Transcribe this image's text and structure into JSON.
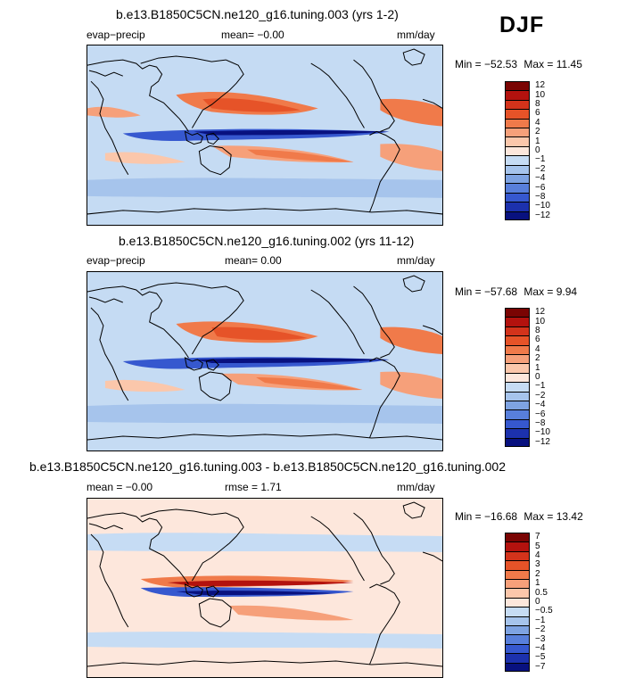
{
  "season": "DJF",
  "panels": [
    {
      "id": "p1",
      "title": "b.e13.B1850C5CN.ne120_g16.tuning.003 (yrs 1-2)",
      "left_label": "evap−precip",
      "center_label": "mean=   −0.00",
      "right_label": "mm/day",
      "min_label": "Min = −52.53",
      "max_label": "Max =   11.45",
      "colorbar_levels": [
        "12",
        "10",
        "8",
        "6",
        "4",
        "2",
        "1",
        "0",
        "−1",
        "−2",
        "−4",
        "−6",
        "−8",
        "−10",
        "−12"
      ]
    },
    {
      "id": "p2",
      "title": "b.e13.B1850C5CN.ne120_g16.tuning.002 (yrs 11-12)",
      "left_label": "evap−precip",
      "center_label": "mean=    0.00",
      "right_label": "mm/day",
      "min_label": "Min = −57.68",
      "max_label": "Max =    9.94",
      "colorbar_levels": [
        "12",
        "10",
        "8",
        "6",
        "4",
        "2",
        "1",
        "0",
        "−1",
        "−2",
        "−4",
        "−6",
        "−8",
        "−10",
        "−12"
      ]
    },
    {
      "id": "p3",
      "title": "b.e13.B1850C5CN.ne120_g16.tuning.003 - b.e13.B1850C5CN.ne120_g16.tuning.002",
      "left_label": "mean =   −0.00",
      "center_label": "rmse =    1.71",
      "right_label": "mm/day",
      "min_label": "Min = −16.68",
      "max_label": "Max =   13.42",
      "colorbar_levels": [
        "7",
        "5",
        "4",
        "3",
        "2",
        "1",
        "0.5",
        "0",
        "−0.5",
        "−1",
        "−2",
        "−3",
        "−4",
        "−5",
        "−7"
      ]
    }
  ],
  "colors": {
    "palette": [
      "#7a0403",
      "#b3120e",
      "#d3331b",
      "#e65328",
      "#f07a4a",
      "#f6a07a",
      "#fbc7ab",
      "#fde7dc",
      "#c6dcf4",
      "#a6c4ec",
      "#7ea3e2",
      "#587fdb",
      "#3658cf",
      "#1c31ad",
      "#08117f"
    ],
    "coastline": "#000000"
  }
}
